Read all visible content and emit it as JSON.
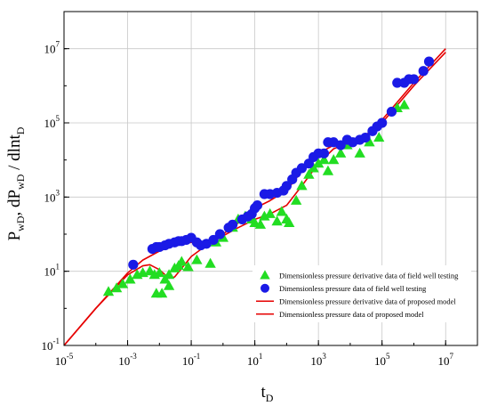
{
  "chart_data": {
    "type": "scatter",
    "x_scale": "log",
    "y_scale": "log",
    "xlim": [
      1e-05,
      100000000.0
    ],
    "ylim": [
      0.1,
      100000000.0
    ],
    "grid": true,
    "legend_position": "bottom-right",
    "xlabel": {
      "main": "t",
      "sub": "D"
    },
    "ylabel": {
      "parts": [
        {
          "t": "P",
          "sub": false
        },
        {
          "t": "wD",
          "sub": true
        },
        {
          "t": ", dP",
          "sub": false
        },
        {
          "t": "wD",
          "sub": true
        },
        {
          "t": " / dlnt",
          "sub": false
        },
        {
          "t": "D",
          "sub": true
        }
      ]
    },
    "x_ticks": [
      {
        "base": "10",
        "exp": "-5",
        "value": 1e-05
      },
      {
        "base": "10",
        "exp": "-3",
        "value": 0.001
      },
      {
        "base": "10",
        "exp": "-1",
        "value": 0.1
      },
      {
        "base": "10",
        "exp": "1",
        "value": 10
      },
      {
        "base": "10",
        "exp": "3",
        "value": 1000.0
      },
      {
        "base": "10",
        "exp": "5",
        "value": 100000.0
      },
      {
        "base": "10",
        "exp": "7",
        "value": 10000000.0
      }
    ],
    "y_ticks": [
      {
        "base": "10",
        "exp": "-1",
        "value": 0.1
      },
      {
        "base": "10",
        "exp": "1",
        "value": 10
      },
      {
        "base": "10",
        "exp": "3",
        "value": 1000.0
      },
      {
        "base": "10",
        "exp": "5",
        "value": 100000.0
      },
      {
        "base": "10",
        "exp": "7",
        "value": 10000000.0
      }
    ],
    "series": [
      {
        "name": "Dimensionless pressure derivative data of field well testing",
        "marker": "triangle",
        "color": "#22dd22",
        "points": [
          [
            0.00025,
            2.8
          ],
          [
            0.00045,
            3.5
          ],
          [
            0.0007,
            4.5
          ],
          [
            0.0012,
            6
          ],
          [
            0.002,
            8
          ],
          [
            0.003,
            9
          ],
          [
            0.005,
            10
          ],
          [
            0.007,
            8
          ],
          [
            0.008,
            2.5
          ],
          [
            0.01,
            9
          ],
          [
            0.012,
            2.5
          ],
          [
            0.015,
            6
          ],
          [
            0.02,
            4
          ],
          [
            0.02,
            8
          ],
          [
            0.03,
            12
          ],
          [
            0.04,
            14
          ],
          [
            0.05,
            18
          ],
          [
            0.08,
            13
          ],
          [
            0.15,
            20
          ],
          [
            0.4,
            16
          ],
          [
            0.6,
            60
          ],
          [
            1,
            80
          ],
          [
            2,
            150
          ],
          [
            3,
            250
          ],
          [
            5,
            300
          ],
          [
            8,
            250
          ],
          [
            10,
            200
          ],
          [
            15,
            180
          ],
          [
            20,
            300
          ],
          [
            30,
            350
          ],
          [
            50,
            220
          ],
          [
            70,
            400
          ],
          [
            100,
            250
          ],
          [
            120,
            200
          ],
          [
            200,
            800
          ],
          [
            300,
            2000
          ],
          [
            500,
            4000
          ],
          [
            700,
            6000
          ],
          [
            1000,
            8000
          ],
          [
            1500,
            10000
          ],
          [
            2000,
            5000
          ],
          [
            3000,
            10000
          ],
          [
            5000,
            15000
          ],
          [
            8000,
            25000
          ],
          [
            20000,
            15000
          ],
          [
            40000,
            30000
          ],
          [
            80000,
            40000
          ],
          [
            300000,
            250000
          ],
          [
            500000,
            300000
          ]
        ]
      },
      {
        "name": "Dimensionless pressure data of field well testing",
        "marker": "circle",
        "color": "#1a1ae6",
        "points": [
          [
            0.0015,
            15
          ],
          [
            0.006,
            40
          ],
          [
            0.008,
            45
          ],
          [
            0.01,
            45
          ],
          [
            0.015,
            50
          ],
          [
            0.02,
            55
          ],
          [
            0.03,
            60
          ],
          [
            0.04,
            65
          ],
          [
            0.05,
            65
          ],
          [
            0.07,
            70
          ],
          [
            0.1,
            80
          ],
          [
            0.15,
            60
          ],
          [
            0.2,
            50
          ],
          [
            0.3,
            55
          ],
          [
            0.5,
            70
          ],
          [
            0.8,
            100
          ],
          [
            1.5,
            150
          ],
          [
            2,
            180
          ],
          [
            4,
            250
          ],
          [
            6,
            300
          ],
          [
            8,
            350
          ],
          [
            10,
            500
          ],
          [
            12,
            600
          ],
          [
            20,
            1200
          ],
          [
            30,
            1200
          ],
          [
            50,
            1300
          ],
          [
            80,
            1500
          ],
          [
            100,
            2000
          ],
          [
            150,
            3000
          ],
          [
            200,
            4500
          ],
          [
            300,
            6000
          ],
          [
            500,
            8000
          ],
          [
            700,
            12000
          ],
          [
            1000,
            15000
          ],
          [
            1500,
            15000
          ],
          [
            2000,
            30000
          ],
          [
            3000,
            30000
          ],
          [
            5000,
            25000
          ],
          [
            8000,
            35000
          ],
          [
            12000,
            30000
          ],
          [
            20000,
            35000
          ],
          [
            30000,
            40000
          ],
          [
            50000,
            60000
          ],
          [
            70000,
            80000
          ],
          [
            100000,
            100000
          ],
          [
            200000,
            200000
          ],
          [
            300000,
            1200000
          ],
          [
            500000,
            1200000
          ],
          [
            700000,
            1500000
          ],
          [
            1000000,
            1500000
          ],
          [
            2000000,
            2500000
          ],
          [
            3000000,
            4500000
          ]
        ]
      },
      {
        "name": "Dimensionless pressure derivative data of proposed model",
        "marker": "line",
        "color": "#e60000",
        "points": [
          [
            1e-05,
            0.1
          ],
          [
            0.0001,
            1
          ],
          [
            0.001,
            8
          ],
          [
            0.003,
            14
          ],
          [
            0.005,
            15
          ],
          [
            0.01,
            11
          ],
          [
            0.02,
            6.5
          ],
          [
            0.03,
            7
          ],
          [
            0.05,
            12
          ],
          [
            0.1,
            25
          ],
          [
            0.3,
            50
          ],
          [
            1,
            90
          ],
          [
            3,
            150
          ],
          [
            10,
            250
          ],
          [
            30,
            350
          ],
          [
            100,
            600
          ],
          [
            300,
            2000
          ],
          [
            1000,
            8000
          ],
          [
            3000,
            20000
          ],
          [
            10000,
            30000
          ],
          [
            30000,
            40000
          ],
          [
            100000,
            100000
          ],
          [
            1000000,
            1000000
          ],
          [
            10000000,
            8000000
          ]
        ]
      },
      {
        "name": "Dimensionless pressure data of proposed model",
        "marker": "line",
        "color": "#e60000",
        "points": [
          [
            1e-05,
            0.1
          ],
          [
            0.0001,
            1
          ],
          [
            0.001,
            9
          ],
          [
            0.003,
            20
          ],
          [
            0.01,
            35
          ],
          [
            0.03,
            50
          ],
          [
            0.1,
            60
          ],
          [
            0.3,
            60
          ],
          [
            1,
            100
          ],
          [
            3,
            200
          ],
          [
            10,
            500
          ],
          [
            30,
            800
          ],
          [
            100,
            1500
          ],
          [
            300,
            5000
          ],
          [
            1000,
            15000
          ],
          [
            3000,
            25000
          ],
          [
            10000,
            35000
          ],
          [
            30000,
            45000
          ],
          [
            100000,
            120000
          ],
          [
            1000000,
            1200000
          ],
          [
            10000000,
            10000000
          ]
        ]
      }
    ]
  }
}
